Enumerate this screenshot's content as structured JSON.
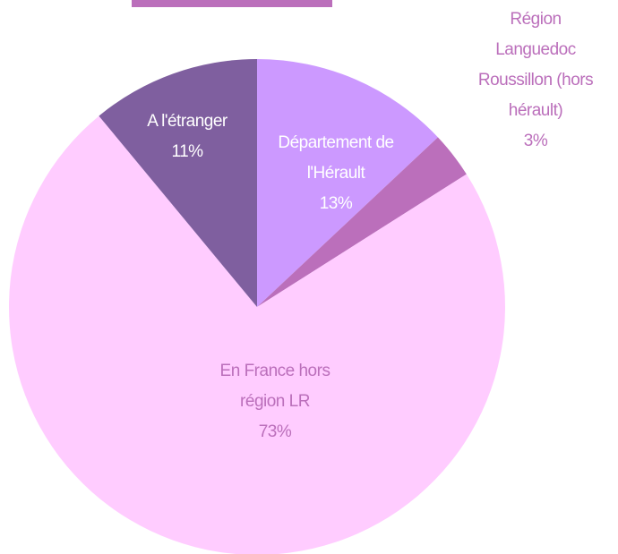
{
  "chart_data": {
    "type": "pie",
    "categories": [
      "Département de l'Hérault",
      "Région Languedoc Roussillon (hors hérault)",
      "En France hors région LR",
      "A l'étranger"
    ],
    "values": [
      13,
      3,
      73,
      11
    ],
    "value_labels": [
      "13%",
      "3%",
      "73%",
      "11%"
    ],
    "colors": [
      "#cc99ff",
      "#bb6fbb",
      "#ffccff",
      "#7f5f9f"
    ]
  }
}
